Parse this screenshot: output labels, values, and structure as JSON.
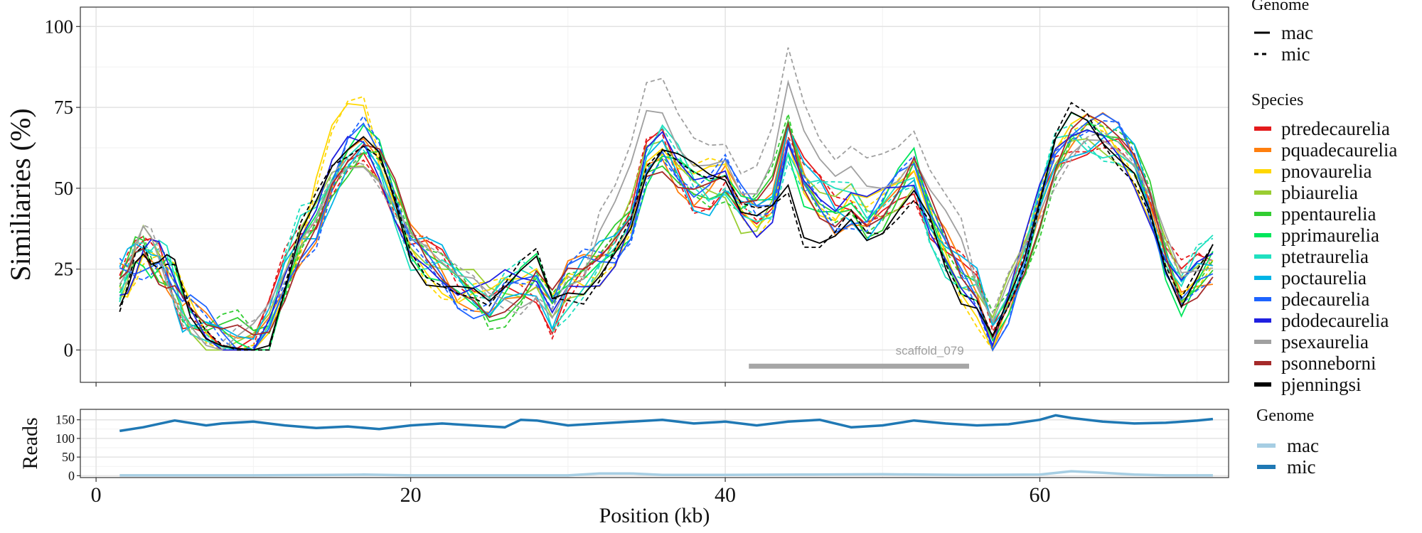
{
  "chart_data": [
    {
      "type": "line",
      "ylabel": "Similiaries (%)",
      "xlim": [
        -1,
        72
      ],
      "ylim": [
        -10,
        106
      ],
      "y_ticks": [
        0,
        25,
        50,
        75,
        100
      ],
      "x_ticks": [
        0,
        20,
        40,
        60
      ],
      "grid": true,
      "legend_genome": {
        "title": "Genome",
        "items": [
          {
            "label": "mac",
            "style": "solid"
          },
          {
            "label": "mic",
            "style": "dashed"
          }
        ]
      },
      "legend_species": {
        "title": "Species",
        "items": [
          {
            "label": "ptredecaurelia",
            "color": "#e41a1c"
          },
          {
            "label": "pquadecaurelia",
            "color": "#ff7f0e"
          },
          {
            "label": "pnovaurelia",
            "color": "#ffd700"
          },
          {
            "label": "pbiaurelia",
            "color": "#9acd32"
          },
          {
            "label": "ppentaurelia",
            "color": "#32cd32"
          },
          {
            "label": "pprimaurelia",
            "color": "#00e65c"
          },
          {
            "label": "ptetraurelia",
            "color": "#20e0c0"
          },
          {
            "label": "poctaurelia",
            "color": "#00b4e6"
          },
          {
            "label": "pdecaurelia",
            "color": "#1e64ff"
          },
          {
            "label": "pdodecaurelia",
            "color": "#2020e0"
          },
          {
            "label": "psexaurelia",
            "color": "#a0a0a0"
          },
          {
            "label": "psonneborni",
            "color": "#a52a2a"
          },
          {
            "label": "pjenningsi",
            "color": "#000000"
          }
        ]
      },
      "x": [
        1.5,
        2,
        2.5,
        3,
        3.5,
        4,
        4.5,
        5,
        5.5,
        6,
        7,
        8,
        9,
        10,
        11,
        12,
        13,
        14,
        15,
        16,
        17,
        18,
        19,
        20,
        21,
        22,
        23,
        24,
        25,
        26,
        27,
        28,
        29,
        30,
        31,
        32,
        33,
        34,
        35,
        36,
        37,
        38,
        39,
        40,
        41,
        42,
        43,
        44,
        45,
        46,
        47,
        48,
        49,
        50,
        51,
        52,
        53,
        54,
        55,
        56,
        57,
        58,
        59,
        60,
        61,
        62,
        63,
        64,
        65,
        66,
        67,
        68,
        69,
        70,
        71
      ],
      "base_profile": [
        20,
        24,
        29,
        31,
        29,
        28,
        25,
        20,
        13,
        10,
        6,
        3,
        2,
        1,
        8,
        22,
        34,
        40,
        52,
        60,
        64,
        58,
        45,
        32,
        28,
        25,
        20,
        17,
        14,
        18,
        20,
        22,
        12,
        20,
        23,
        27,
        32,
        40,
        58,
        63,
        56,
        50,
        49,
        52,
        44,
        42,
        46,
        66,
        52,
        47,
        43,
        45,
        40,
        44,
        50,
        55,
        40,
        30,
        22,
        18,
        5,
        15,
        28,
        45,
        60,
        66,
        67,
        66,
        64,
        58,
        45,
        28,
        18,
        24,
        28
      ],
      "annotation": {
        "label": "scaffold_079",
        "x_start": 41.5,
        "x_end": 55.5,
        "y": -5
      }
    },
    {
      "type": "line",
      "ylabel": "Reads",
      "xlabel": "Position (kb)",
      "xlim": [
        -1,
        72
      ],
      "ylim": [
        -5,
        178
      ],
      "y_ticks": [
        0,
        50,
        100,
        150
      ],
      "x_ticks": [
        0,
        20,
        40,
        60
      ],
      "legend": {
        "title": "Genome",
        "items": [
          {
            "label": "mac",
            "color": "#a6cee3"
          },
          {
            "label": "mic",
            "color": "#1f78b4"
          }
        ]
      },
      "series": [
        {
          "name": "mic",
          "color": "#1f78b4",
          "x": [
            1.5,
            3,
            5,
            7,
            8,
            10,
            12,
            14,
            16,
            18,
            20,
            22,
            24,
            26,
            27,
            28,
            30,
            32,
            34,
            36,
            38,
            40,
            42,
            44,
            46,
            48,
            50,
            52,
            54,
            56,
            58,
            60,
            61,
            62,
            64,
            66,
            68,
            70,
            71
          ],
          "y": [
            120,
            130,
            148,
            135,
            140,
            145,
            135,
            128,
            132,
            125,
            135,
            140,
            135,
            130,
            150,
            148,
            135,
            140,
            145,
            150,
            140,
            145,
            135,
            145,
            150,
            130,
            135,
            148,
            140,
            135,
            138,
            150,
            162,
            155,
            145,
            140,
            142,
            148,
            152
          ]
        },
        {
          "name": "mac",
          "color": "#a6cee3",
          "x": [
            1.5,
            5,
            10,
            15,
            17,
            20,
            25,
            30,
            32,
            34,
            36,
            40,
            45,
            50,
            55,
            60,
            62,
            64,
            66,
            68,
            71
          ],
          "y": [
            1,
            1,
            1,
            2,
            3,
            1,
            1,
            1,
            6,
            6,
            2,
            2,
            3,
            4,
            2,
            3,
            12,
            8,
            3,
            1,
            1
          ]
        }
      ]
    }
  ]
}
